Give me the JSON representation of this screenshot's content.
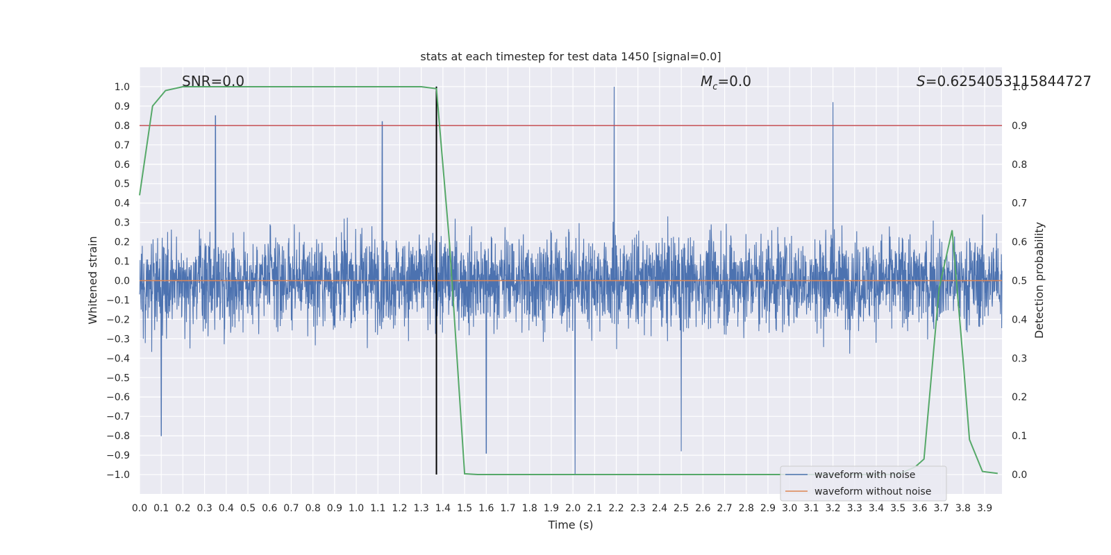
{
  "chart_data": {
    "type": "line",
    "title": "stats at each timestep for test data 1450 [signal=0.0]",
    "xlabel": "Time (s)",
    "ylabel": "Whitened strain",
    "y2label": "Detection probability",
    "xlim": [
      0.0,
      3.98
    ],
    "ylim": [
      -1.1,
      1.1
    ],
    "y2lim": [
      -0.05,
      1.05
    ],
    "x_ticks": [
      0.0,
      0.1,
      0.2,
      0.3,
      0.4,
      0.5,
      0.6,
      0.7,
      0.8,
      0.9,
      1.0,
      1.1,
      1.2,
      1.3,
      1.4,
      1.5,
      1.6,
      1.7,
      1.8,
      1.9,
      2.0,
      2.1,
      2.2,
      2.3,
      2.4,
      2.5,
      2.6,
      2.7,
      2.8,
      2.9,
      3.0,
      3.1,
      3.2,
      3.3,
      3.4,
      3.5,
      3.6,
      3.7,
      3.8,
      3.9
    ],
    "x_tick_labels": [
      "0.0",
      "0.1",
      "0.2",
      "0.3",
      "0.4",
      "0.5",
      "0.6",
      "0.7",
      "0.8",
      "0.9",
      "1.0",
      "1.1",
      "1.2",
      "1.3",
      "1.4",
      "1.5",
      "1.6",
      "1.7",
      "1.8",
      "1.9",
      "2.0",
      "2.1",
      "2.2",
      "2.3",
      "2.4",
      "2.5",
      "2.6",
      "2.7",
      "2.8",
      "2.9",
      "3.0",
      "3.1",
      "3.2",
      "3.3",
      "3.4",
      "3.5",
      "3.6",
      "3.7",
      "3.8",
      "3.9"
    ],
    "y_ticks": [
      1.0,
      0.9,
      0.8,
      0.7,
      0.6,
      0.5,
      0.4,
      0.3,
      0.2,
      0.1,
      0.0,
      -0.1,
      -0.2,
      -0.3,
      -0.4,
      -0.5,
      -0.6,
      -0.7,
      -0.8,
      -0.9,
      -1.0
    ],
    "y_tick_labels": [
      "1.0",
      "0.9",
      "0.8",
      "0.7",
      "0.6",
      "0.5",
      "0.4",
      "0.3",
      "0.2",
      "0.1",
      "0.0",
      "−0.1",
      "−0.2",
      "−0.3",
      "−0.4",
      "−0.5",
      "−0.6",
      "−0.7",
      "−0.8",
      "−0.9",
      "−1.0"
    ],
    "y2_ticks": [
      1.0,
      0.9,
      0.8,
      0.7,
      0.6,
      0.5,
      0.4,
      0.3,
      0.2,
      0.1,
      0.0
    ],
    "y2_tick_labels": [
      "1.0",
      "0.9",
      "0.8",
      "0.7",
      "0.6",
      "0.5",
      "0.4",
      "0.3",
      "0.2",
      "0.1",
      "0.0"
    ],
    "annotations": {
      "snr": "SNR=0.0",
      "mc_symbol": "M",
      "mc_subscript": "c",
      "mc_value": "=0.0",
      "s_symbol": "S",
      "s_value": "=0.6254053115844727"
    },
    "series": [
      {
        "name": "waveform with noise",
        "color": "#4c72b0",
        "axis": "left",
        "description": "dense whitened-strain noise trace, amplitude roughly within ±0.85, peaks near 1.0 at t≈2.19 and −1.0 at t≈2.01",
        "notable_peaks": [
          {
            "x": 0.35,
            "y": 0.85
          },
          {
            "x": 1.12,
            "y": 0.82
          },
          {
            "x": 1.37,
            "y": 1.0
          },
          {
            "x": 2.19,
            "y": 1.0
          },
          {
            "x": 3.2,
            "y": 0.92
          },
          {
            "x": 2.01,
            "y": -1.0
          },
          {
            "x": 0.1,
            "y": -0.8
          },
          {
            "x": 1.6,
            "y": -0.89
          },
          {
            "x": 2.5,
            "y": -0.88
          }
        ]
      },
      {
        "name": "waveform without noise",
        "color": "#dd8452",
        "axis": "left",
        "x": [
          0.0,
          3.98
        ],
        "y": [
          0.0,
          0.0
        ]
      },
      {
        "name": "detection probability",
        "color": "#55a868",
        "axis": "right",
        "x": [
          0.0,
          0.06,
          0.12,
          0.2,
          0.3,
          0.5,
          0.8,
          1.0,
          1.2,
          1.3,
          1.37,
          1.43,
          1.5,
          1.56,
          1.7,
          2.0,
          3.0,
          3.5,
          3.58,
          3.62,
          3.69,
          3.75,
          3.8,
          3.83,
          3.89,
          3.96
        ],
        "y": [
          0.72,
          0.95,
          0.99,
          1.0,
          1.0,
          1.0,
          1.0,
          1.0,
          1.0,
          1.0,
          0.995,
          0.6,
          0.002,
          0.0,
          0.0,
          0.0,
          0.0,
          0.0,
          0.02,
          0.04,
          0.48,
          0.63,
          0.3,
          0.09,
          0.008,
          0.003
        ]
      }
    ],
    "threshold_line": {
      "axis": "right",
      "value": 0.9,
      "color": "#c44e52"
    },
    "marker_line": {
      "x": 1.37,
      "y_from": -1.0,
      "y_to": 1.0,
      "color": "#000000"
    },
    "legend": {
      "placement": "bottom-right",
      "entries": [
        {
          "label": "waveform with noise",
          "color": "#4c72b0"
        },
        {
          "label": "waveform without noise",
          "color": "#dd8452"
        }
      ]
    },
    "grid": true,
    "background": "#eaeaf2"
  }
}
